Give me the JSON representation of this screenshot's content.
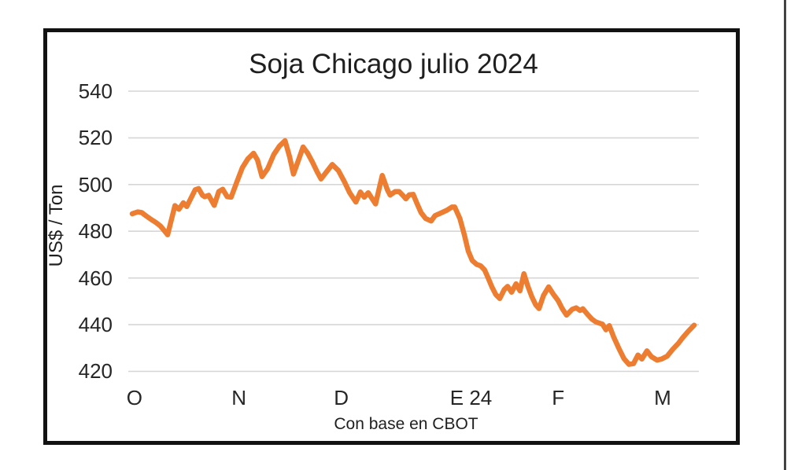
{
  "chart": {
    "title": "Soja Chicago julio 2024",
    "y_axis_title": "US$ / Ton",
    "footnote": "Con base en CBOT",
    "line_color": "#ED7D31",
    "gridline_color": "#D6D6D6",
    "text_color": "#262626",
    "frame_color": "#121212"
  },
  "chart_data": {
    "type": "line",
    "title": "Soja Chicago julio 2024",
    "ylabel": "US$ / Ton",
    "xlabel": "Con base en CBOT",
    "unit": "US$ / Ton",
    "ylim": [
      420,
      540
    ],
    "grid": true,
    "legend": false,
    "yticks": [
      540,
      520,
      500,
      480,
      460,
      440,
      420
    ],
    "xticks": [
      {
        "label": "O",
        "f": 0.004
      },
      {
        "label": "N",
        "f": 0.19
      },
      {
        "label": "D",
        "f": 0.372
      },
      {
        "label": "E 24",
        "f": 0.603
      },
      {
        "label": "F",
        "f": 0.758
      },
      {
        "label": "M",
        "f": 0.944
      }
    ],
    "series": [
      {
        "name": "Soja Chicago julio 2024",
        "points": [
          [
            0.0,
            487.5
          ],
          [
            0.01,
            488.3
          ],
          [
            0.017,
            488.0
          ],
          [
            0.025,
            486.5
          ],
          [
            0.034,
            485.0
          ],
          [
            0.042,
            483.8
          ],
          [
            0.05,
            482.3
          ],
          [
            0.056,
            480.6
          ],
          [
            0.063,
            478.5
          ],
          [
            0.076,
            491.0
          ],
          [
            0.083,
            489.4
          ],
          [
            0.091,
            492.2
          ],
          [
            0.097,
            490.6
          ],
          [
            0.112,
            497.8
          ],
          [
            0.118,
            498.3
          ],
          [
            0.125,
            495.4
          ],
          [
            0.129,
            494.8
          ],
          [
            0.136,
            495.4
          ],
          [
            0.146,
            491.1
          ],
          [
            0.154,
            497.0
          ],
          [
            0.161,
            498.0
          ],
          [
            0.169,
            494.8
          ],
          [
            0.176,
            494.6
          ],
          [
            0.186,
            501.0
          ],
          [
            0.196,
            507.2
          ],
          [
            0.206,
            511.1
          ],
          [
            0.216,
            513.4
          ],
          [
            0.223,
            510.5
          ],
          [
            0.231,
            503.4
          ],
          [
            0.241,
            506.8
          ],
          [
            0.252,
            512.9
          ],
          [
            0.262,
            516.5
          ],
          [
            0.272,
            518.8
          ],
          [
            0.28,
            512.0
          ],
          [
            0.287,
            504.5
          ],
          [
            0.296,
            510.5
          ],
          [
            0.304,
            516.1
          ],
          [
            0.312,
            513.5
          ],
          [
            0.321,
            509.5
          ],
          [
            0.329,
            505.5
          ],
          [
            0.336,
            502.4
          ],
          [
            0.346,
            505.5
          ],
          [
            0.356,
            508.6
          ],
          [
            0.367,
            506.0
          ],
          [
            0.377,
            501.5
          ],
          [
            0.387,
            496.5
          ],
          [
            0.398,
            492.5
          ],
          [
            0.406,
            496.8
          ],
          [
            0.413,
            494.6
          ],
          [
            0.42,
            496.5
          ],
          [
            0.433,
            491.7
          ],
          [
            0.445,
            503.9
          ],
          [
            0.454,
            497.8
          ],
          [
            0.459,
            495.5
          ],
          [
            0.468,
            497.0
          ],
          [
            0.475,
            497.0
          ],
          [
            0.482,
            495.3
          ],
          [
            0.487,
            493.9
          ],
          [
            0.493,
            495.6
          ],
          [
            0.5,
            495.8
          ],
          [
            0.507,
            491.8
          ],
          [
            0.514,
            488.0
          ],
          [
            0.522,
            485.5
          ],
          [
            0.532,
            484.4
          ],
          [
            0.539,
            486.7
          ],
          [
            0.549,
            487.8
          ],
          [
            0.56,
            489.0
          ],
          [
            0.569,
            490.4
          ],
          [
            0.574,
            490.4
          ],
          [
            0.583,
            485.5
          ],
          [
            0.591,
            478.5
          ],
          [
            0.598,
            471.5
          ],
          [
            0.605,
            467.5
          ],
          [
            0.613,
            465.8
          ],
          [
            0.62,
            465.2
          ],
          [
            0.627,
            463.5
          ],
          [
            0.633,
            460.2
          ],
          [
            0.64,
            456.2
          ],
          [
            0.647,
            452.9
          ],
          [
            0.654,
            451.2
          ],
          [
            0.662,
            455.0
          ],
          [
            0.668,
            456.4
          ],
          [
            0.675,
            453.9
          ],
          [
            0.683,
            457.5
          ],
          [
            0.69,
            454.5
          ],
          [
            0.697,
            461.8
          ],
          [
            0.704,
            456.5
          ],
          [
            0.711,
            452.0
          ],
          [
            0.718,
            448.5
          ],
          [
            0.724,
            446.9
          ],
          [
            0.732,
            452.5
          ],
          [
            0.741,
            456.2
          ],
          [
            0.749,
            453.2
          ],
          [
            0.758,
            450.3
          ],
          [
            0.765,
            447.0
          ],
          [
            0.773,
            444.1
          ],
          [
            0.783,
            446.6
          ],
          [
            0.79,
            447.2
          ],
          [
            0.797,
            446.1
          ],
          [
            0.802,
            446.8
          ],
          [
            0.811,
            444.2
          ],
          [
            0.818,
            442.4
          ],
          [
            0.825,
            441.2
          ],
          [
            0.832,
            440.6
          ],
          [
            0.837,
            440.2
          ],
          [
            0.843,
            437.8
          ],
          [
            0.849,
            439.6
          ],
          [
            0.857,
            434.6
          ],
          [
            0.867,
            429.4
          ],
          [
            0.875,
            425.5
          ],
          [
            0.884,
            423.0
          ],
          [
            0.892,
            423.3
          ],
          [
            0.9,
            427.0
          ],
          [
            0.907,
            425.3
          ],
          [
            0.916,
            428.8
          ],
          [
            0.924,
            426.3
          ],
          [
            0.934,
            424.8
          ],
          [
            0.942,
            425.3
          ],
          [
            0.952,
            426.5
          ],
          [
            0.962,
            429.5
          ],
          [
            0.972,
            432.0
          ],
          [
            0.98,
            434.5
          ],
          [
            0.99,
            437.3
          ],
          [
            1.0,
            439.8
          ]
        ]
      }
    ]
  }
}
